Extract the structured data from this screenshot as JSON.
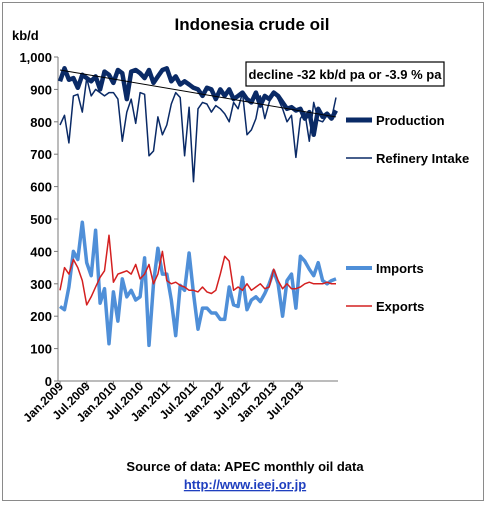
{
  "chart_data": {
    "type": "line",
    "title": "Indonesia crude oil",
    "ylabel": "kb/d",
    "ylim": [
      0,
      1000
    ],
    "y_ticks": [
      "0",
      "100",
      "200",
      "300",
      "400",
      "500",
      "600",
      "700",
      "800",
      "900",
      "1,000"
    ],
    "x_ticks": [
      "Jan.2009",
      "Jul.2009",
      "Jan.2010",
      "Jul.2010",
      "Jan.2011",
      "Jul.2011",
      "Jan.2012",
      "Jul.2012",
      "Jan.2013",
      "Jul.2013"
    ],
    "grid": false,
    "annotation": "decline -32 kb/d pa or -3.9 % pa",
    "source": "Source of data: APEC monthly oil data",
    "link": "http://www.ieej.or.jp",
    "trend": {
      "start": 960,
      "end": 815
    },
    "series": [
      {
        "name": "Production",
        "color": "#0a2a66",
        "values": [
          925,
          965,
          930,
          935,
          905,
          945,
          935,
          925,
          940,
          900,
          955,
          945,
          920,
          960,
          950,
          870,
          955,
          960,
          950,
          935,
          960,
          920,
          940,
          960,
          965,
          925,
          940,
          915,
          925,
          915,
          905,
          900,
          880,
          905,
          900,
          870,
          900,
          880,
          900,
          870,
          880,
          890,
          870,
          860,
          890,
          850,
          880,
          870,
          890,
          880,
          860,
          840,
          845,
          835,
          840,
          810,
          830,
          760,
          840,
          815,
          825,
          810,
          835
        ]
      },
      {
        "name": "Refinery Intake",
        "color": "#0a2a66",
        "values": [
          790,
          820,
          735,
          880,
          885,
          830,
          935,
          880,
          900,
          890,
          880,
          890,
          890,
          870,
          740,
          830,
          870,
          795,
          890,
          885,
          695,
          710,
          815,
          760,
          790,
          855,
          890,
          875,
          695,
          845,
          615,
          840,
          860,
          855,
          830,
          850,
          840,
          825,
          800,
          860,
          840,
          890,
          760,
          775,
          810,
          880,
          810,
          860,
          895,
          870,
          840,
          800,
          820,
          690,
          810,
          830,
          740,
          860,
          805,
          800,
          820,
          810,
          875
        ]
      },
      {
        "name": "Imports",
        "color": "#4f8fd8",
        "values": [
          230,
          220,
          290,
          400,
          375,
          490,
          365,
          325,
          465,
          240,
          285,
          115,
          275,
          185,
          315,
          260,
          280,
          250,
          260,
          380,
          110,
          300,
          410,
          330,
          330,
          250,
          140,
          295,
          280,
          395,
          270,
          160,
          225,
          225,
          210,
          210,
          190,
          190,
          290,
          235,
          230,
          320,
          220,
          250,
          260,
          245,
          270,
          300,
          340,
          300,
          200,
          310,
          330,
          225,
          385,
          370,
          345,
          325,
          365,
          310,
          300,
          310,
          315
        ]
      },
      {
        "name": "Exports",
        "color": "#d42020",
        "values": [
          280,
          350,
          330,
          375,
          350,
          310,
          235,
          260,
          290,
          320,
          340,
          450,
          305,
          330,
          335,
          340,
          330,
          360,
          315,
          330,
          360,
          300,
          330,
          400,
          310,
          300,
          305,
          295,
          290,
          280,
          280,
          275,
          290,
          275,
          270,
          280,
          330,
          385,
          370,
          280,
          290,
          280,
          300,
          280,
          290,
          300,
          285,
          290,
          345,
          310,
          285,
          300,
          285,
          285,
          290,
          300,
          305,
          300,
          300,
          300,
          305,
          300,
          300
        ]
      }
    ]
  }
}
